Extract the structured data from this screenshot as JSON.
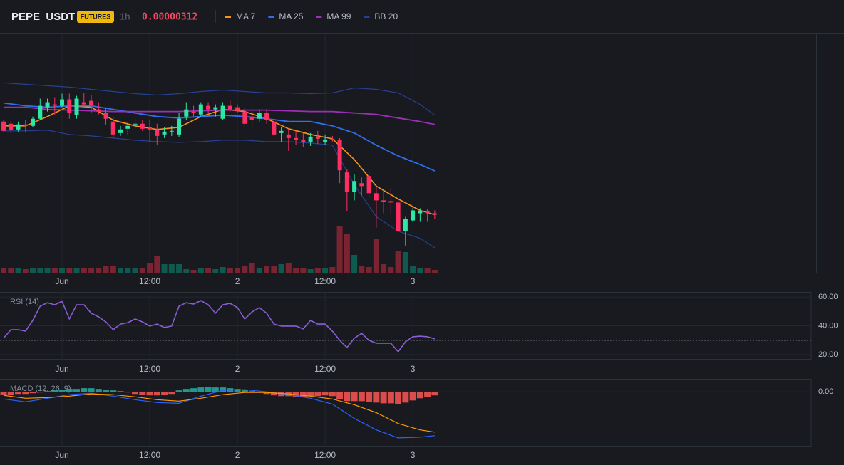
{
  "header": {
    "symbol": "PEPE_USDT",
    "badge": "FUTURES",
    "interval": "1h",
    "price": "0.00000312"
  },
  "chart_data": [
    {
      "type": "candlestick",
      "x": [
        -8,
        -7,
        -6,
        -5,
        -4,
        -3,
        -2,
        -1,
        0,
        1,
        2,
        3,
        4,
        5,
        6,
        7,
        8,
        9,
        10,
        11,
        12,
        13,
        14,
        15,
        16,
        17,
        18,
        19,
        20,
        21,
        22,
        23,
        24,
        25,
        26,
        27,
        28,
        29,
        30,
        31,
        32,
        33,
        34,
        35,
        36,
        37,
        38,
        39,
        40,
        41,
        42,
        43,
        44,
        45,
        46,
        47,
        48,
        49,
        50,
        51
      ],
      "open": [
        3.25e-06,
        3.247e-06,
        3.239e-06,
        3.246e-06,
        3.244e-06,
        3.254e-06,
        3.27e-06,
        3.274e-06,
        3.272e-06,
        3.281e-06,
        3.259e-06,
        3.277e-06,
        3.279e-06,
        3.267e-06,
        3.262e-06,
        3.25e-06,
        3.234e-06,
        3.24e-06,
        3.246e-06,
        3.247e-06,
        3.242e-06,
        3.239e-06,
        3.232e-06,
        3.236e-06,
        3.232e-06,
        3.257e-06,
        3.264e-06,
        3.26e-06,
        3.272e-06,
        3.267e-06,
        3.254e-06,
        3.272e-06,
        3.27e-06,
        3.264e-06,
        3.257e-06,
        3.254e-06,
        3.262e-06,
        3.25e-06,
        3.234e-06,
        3.232e-06,
        3.227e-06,
        3.224e-06,
        3.222e-06,
        3.229e-06,
        3.222e-06,
        3.226e-06,
        3.224e-06,
        3.179e-06,
        3.152e-06,
        3.164e-06,
        3.174e-06,
        3.15e-06,
        3.14e-06,
        3.139e-06,
        3.137e-06,
        3.097e-06,
        3.112e-06,
        3.122e-06,
        3.125e-06,
        3.122e-06
      ],
      "high": [
        3.252e-06,
        3.25e-06,
        3.25e-06,
        3.252e-06,
        3.257e-06,
        3.282e-06,
        3.282e-06,
        3.284e-06,
        3.289e-06,
        3.289e-06,
        3.286e-06,
        3.29e-06,
        3.287e-06,
        3.277e-06,
        3.27e-06,
        3.257e-06,
        3.244e-06,
        3.25e-06,
        3.254e-06,
        3.252e-06,
        3.252e-06,
        3.247e-06,
        3.242e-06,
        3.244e-06,
        3.262e-06,
        3.277e-06,
        3.272e-06,
        3.277e-06,
        3.277e-06,
        3.274e-06,
        3.277e-06,
        3.279e-06,
        3.274e-06,
        3.27e-06,
        3.267e-06,
        3.267e-06,
        3.267e-06,
        3.254e-06,
        3.242e-06,
        3.24e-06,
        3.237e-06,
        3.234e-06,
        3.234e-06,
        3.237e-06,
        3.232e-06,
        3.23e-06,
        3.227e-06,
        3.184e-06,
        3.177e-06,
        3.172e-06,
        3.182e-06,
        3.16e-06,
        3.154e-06,
        3.157e-06,
        3.14e-06,
        3.117e-06,
        3.13e-06,
        3.129e-06,
        3.128e-06,
        3.126e-06
      ],
      "low": [
        3.235e-06,
        3.234e-06,
        3.236e-06,
        3.236e-06,
        3.242e-06,
        3.252e-06,
        3.264e-06,
        3.26e-06,
        3.27e-06,
        3.254e-06,
        3.254e-06,
        3.272e-06,
        3.262e-06,
        3.26e-06,
        3.246e-06,
        3.227e-06,
        3.23e-06,
        3.232e-06,
        3.24e-06,
        3.237e-06,
        3.222e-06,
        3.217e-06,
        3.227e-06,
        3.23e-06,
        3.228e-06,
        3.252e-06,
        3.257e-06,
        3.257e-06,
        3.262e-06,
        3.257e-06,
        3.252e-06,
        3.264e-06,
        3.262e-06,
        3.244e-06,
        3.242e-06,
        3.25e-06,
        3.247e-06,
        3.23e-06,
        3.222e-06,
        3.209e-06,
        3.217e-06,
        3.214e-06,
        3.216e-06,
        3.219e-06,
        3.217e-06,
        3.222e-06,
        3.164e-06,
        3.125e-06,
        3.14e-06,
        3.147e-06,
        3.142e-06,
        3.102e-06,
        3.122e-06,
        3.122e-06,
        3.096e-06,
        3.077e-06,
        3.11e-06,
        3.11e-06,
        3.11e-06,
        3.114e-06
      ],
      "close": [
        3.237e-06,
        3.238e-06,
        3.246e-06,
        3.244e-06,
        3.254e-06,
        3.272e-06,
        3.277e-06,
        3.272e-06,
        3.281e-06,
        3.262e-06,
        3.282e-06,
        3.274e-06,
        3.272e-06,
        3.264e-06,
        3.254e-06,
        3.232e-06,
        3.239e-06,
        3.244e-06,
        3.247e-06,
        3.24e-06,
        3.239e-06,
        3.23e-06,
        3.236e-06,
        3.237e-06,
        3.254e-06,
        3.267e-06,
        3.262e-06,
        3.274e-06,
        3.267e-06,
        3.27e-06,
        3.272e-06,
        3.267e-06,
        3.265e-06,
        3.247e-06,
        3.252e-06,
        3.262e-06,
        3.252e-06,
        3.232e-06,
        3.237e-06,
        3.227e-06,
        3.224e-06,
        3.222e-06,
        3.229e-06,
        3.226e-06,
        3.225e-06,
        3.224e-06,
        3.182e-06,
        3.152e-06,
        3.167e-06,
        3.16e-06,
        3.15e-06,
        3.14e-06,
        3.138e-06,
        3.137e-06,
        3.097e-06,
        3.114e-06,
        3.126e-06,
        3.125e-06,
        3.122e-06,
        3.12e-06
      ],
      "volume": [
        7,
        6,
        6,
        5,
        7,
        6,
        7,
        6,
        6,
        7,
        6,
        6,
        7,
        7,
        9,
        10,
        7,
        6,
        6,
        7,
        13,
        23,
        12,
        12,
        12,
        5,
        4,
        6,
        6,
        5,
        8,
        6,
        6,
        10,
        14,
        7,
        9,
        10,
        12,
        13,
        6,
        6,
        5,
        6,
        7,
        8,
        65,
        55,
        25,
        10,
        8,
        48,
        12,
        8,
        31,
        29,
        10,
        7,
        6,
        4
      ],
      "up_color": "#2ee6a6",
      "down_color": "#ff2e63",
      "volume_up_color": "#0f5a4f",
      "volume_down_color": "#7a2432",
      "ylim": [
        3.039e-06,
        3.372e-06
      ],
      "volume_ylim": [
        0,
        335
      ],
      "xlim": [
        -8.49,
        103.2
      ],
      "xticks": [
        {
          "value": 0,
          "label": "Jun"
        },
        {
          "value": 12,
          "label": "12:00"
        },
        {
          "value": 24,
          "label": "2"
        },
        {
          "value": 36,
          "label": "12:00"
        },
        {
          "value": 48,
          "label": "3"
        }
      ],
      "overlay_x": [
        -8,
        -5,
        -2,
        1,
        4,
        7,
        10,
        13,
        16,
        19,
        22,
        25,
        28,
        31,
        34,
        37,
        40,
        43,
        46,
        49,
        51
      ],
      "overlays": [
        {
          "name": "MA 7",
          "color": "#f7931a",
          "values": [
            3.244e-06,
            3.244e-06,
            3.257e-06,
            3.272e-06,
            3.27e-06,
            3.252e-06,
            3.244e-06,
            3.239e-06,
            3.242e-06,
            3.257e-06,
            3.267e-06,
            3.264e-06,
            3.254e-06,
            3.24e-06,
            3.232e-06,
            3.226e-06,
            3.197e-06,
            3.16e-06,
            3.142e-06,
            3.126e-06,
            3.12e-06
          ]
        },
        {
          "name": "MA 25",
          "color": "#2f6fed",
          "values": [
            3.276e-06,
            3.272e-06,
            3.27e-06,
            3.272e-06,
            3.272e-06,
            3.267e-06,
            3.262e-06,
            3.257e-06,
            3.255e-06,
            3.257e-06,
            3.259e-06,
            3.257e-06,
            3.254e-06,
            3.25e-06,
            3.25e-06,
            3.244e-06,
            3.234e-06,
            3.217e-06,
            3.202e-06,
            3.19e-06,
            3.181e-06
          ]
        },
        {
          "name": "MA 99",
          "color": "#9c2fb5",
          "values": [
            3.27e-06,
            3.27e-06,
            3.267e-06,
            3.266e-06,
            3.265e-06,
            3.264e-06,
            3.264e-06,
            3.264e-06,
            3.264e-06,
            3.265e-06,
            3.266e-06,
            3.266e-06,
            3.266e-06,
            3.265e-06,
            3.264e-06,
            3.264e-06,
            3.262e-06,
            3.26e-06,
            3.255e-06,
            3.25e-06,
            3.246e-06
          ]
        },
        {
          "name": "BB 20",
          "color": "#27408f",
          "upper": [
            3.304e-06,
            3.302e-06,
            3.3e-06,
            3.298e-06,
            3.295e-06,
            3.292e-06,
            3.289e-06,
            3.287e-06,
            3.289e-06,
            3.292e-06,
            3.294e-06,
            3.292e-06,
            3.29e-06,
            3.29e-06,
            3.289e-06,
            3.29e-06,
            3.297e-06,
            3.295e-06,
            3.29e-06,
            3.274e-06,
            3.259e-06
          ],
          "lower": [
            3.237e-06,
            3.237e-06,
            3.238e-06,
            3.232e-06,
            3.23e-06,
            3.227e-06,
            3.224e-06,
            3.222e-06,
            3.221e-06,
            3.222e-06,
            3.224e-06,
            3.224e-06,
            3.222e-06,
            3.222e-06,
            3.22e-06,
            3.217e-06,
            3.162e-06,
            3.117e-06,
            3.097e-06,
            3.087e-06,
            3.074e-06
          ]
        }
      ]
    },
    {
      "type": "line",
      "title": "RSI (14)",
      "color": "#8a5cd6",
      "values": [
        31.4,
        37.3,
        37.3,
        36.3,
        43.7,
        53.6,
        56.0,
        54.6,
        57.0,
        44.7,
        54.6,
        54.6,
        48.7,
        46.2,
        42.7,
        37.3,
        41.2,
        42.2,
        44.7,
        42.7,
        39.8,
        41.2,
        38.8,
        39.8,
        53.6,
        56.0,
        55.1,
        57.5,
        54.6,
        48.7,
        54.6,
        55.6,
        52.6,
        44.7,
        49.6,
        52.6,
        48.7,
        41.2,
        39.8,
        39.8,
        39.8,
        37.8,
        43.7,
        41.2,
        41.2,
        36.3,
        29.9,
        24.9,
        31.4,
        34.8,
        29.9,
        27.9,
        27.9,
        27.9,
        22.0,
        28.9,
        32.4,
        32.8,
        32.4,
        30.9
      ],
      "level": 30,
      "ylim": [
        16.5,
        63.5
      ],
      "yticks": [
        {
          "value": 60,
          "label": "60.00"
        },
        {
          "value": 40,
          "label": "40.00"
        },
        {
          "value": 20,
          "label": "20.00"
        }
      ]
    },
    {
      "type": "macd",
      "title": "MACD (12, 26, 9)",
      "histogram": [
        -0.4,
        -0.4,
        -0.3,
        -0.3,
        -0.2,
        -0.1,
        0.1,
        0.2,
        0.3,
        0.4,
        0.4,
        0.5,
        0.5,
        0.4,
        0.3,
        0.2,
        0.1,
        -0.1,
        -0.3,
        -0.4,
        -0.5,
        -0.5,
        -0.4,
        -0.3,
        0.2,
        0.4,
        0.5,
        0.6,
        0.7,
        0.6,
        0.6,
        0.5,
        0.4,
        0.3,
        0.1,
        -0.1,
        -0.3,
        -0.5,
        -0.6,
        -0.6,
        -0.7,
        -0.7,
        -0.6,
        -0.6,
        -0.5,
        -0.6,
        -1.0,
        -1.3,
        -1.3,
        -1.3,
        -1.4,
        -1.5,
        -1.6,
        -1.6,
        -1.7,
        -1.5,
        -1.2,
        -0.9,
        -0.7,
        -0.5
      ],
      "hist_up_color": "#26a69a",
      "hist_down_color": "#ef5350",
      "macd_line": {
        "color": "#2962ff",
        "values": [
          -1.0,
          -1.4,
          -0.9,
          -0.4,
          -0.2,
          -0.6,
          -1.1,
          -1.5,
          -1.6,
          -0.6,
          0.2,
          0.3,
          0.0,
          -0.4,
          -0.9,
          -1.7,
          -3.7,
          -5.3,
          -6.4,
          -6.3,
          -6.1
        ]
      },
      "signal_line": {
        "color": "#ff9800",
        "values": [
          -0.5,
          -0.9,
          -0.8,
          -0.6,
          -0.3,
          -0.4,
          -0.7,
          -1.1,
          -1.3,
          -0.9,
          -0.4,
          -0.1,
          -0.1,
          -0.3,
          -0.6,
          -1.0,
          -1.8,
          -2.9,
          -4.4,
          -5.3,
          -5.6
        ]
      },
      "ylim": [
        -7.7,
        1.8
      ],
      "yticks": [
        {
          "value": 0,
          "label": "0.00"
        }
      ]
    }
  ]
}
